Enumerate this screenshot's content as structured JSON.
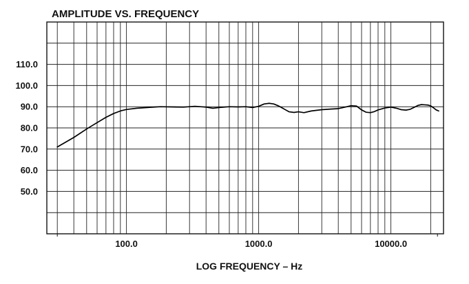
{
  "chart_data": {
    "type": "line",
    "title": "AMPLITUDE VS. FREQUENCY",
    "xlabel": "LOG FREQUENCY – Hz",
    "ylabel": "",
    "xscale": "log",
    "xlim": [
      25,
      25000
    ],
    "ylim": [
      30,
      130
    ],
    "grid": true,
    "x_ticks": [
      {
        "value": 100,
        "label": "100.0"
      },
      {
        "value": 1000,
        "label": "1000.0"
      },
      {
        "value": 10000,
        "label": "10000.0"
      }
    ],
    "y_ticks": [
      {
        "value": 110,
        "label": "110.0"
      },
      {
        "value": 100,
        "label": "100.0"
      },
      {
        "value": 90,
        "label": "90.0"
      },
      {
        "value": 80,
        "label": "80.0"
      },
      {
        "value": 70,
        "label": "70.0"
      },
      {
        "value": 60,
        "label": "60.0"
      },
      {
        "value": 50,
        "label": "50.0"
      }
    ],
    "series": [
      {
        "values": [
          [
            30,
            71
          ],
          [
            40,
            75.5
          ],
          [
            50,
            79.5
          ],
          [
            60,
            82.5
          ],
          [
            70,
            85
          ],
          [
            80,
            86.8
          ],
          [
            90,
            88
          ],
          [
            100,
            88.7
          ],
          [
            120,
            89.3
          ],
          [
            150,
            89.7
          ],
          [
            180,
            90
          ],
          [
            220,
            89.9
          ],
          [
            270,
            89.8
          ],
          [
            330,
            90.2
          ],
          [
            400,
            89.8
          ],
          [
            450,
            89.3
          ],
          [
            500,
            89.6
          ],
          [
            600,
            90
          ],
          [
            700,
            89.9
          ],
          [
            800,
            90
          ],
          [
            900,
            89.6
          ],
          [
            1000,
            90.2
          ],
          [
            1100,
            91.3
          ],
          [
            1200,
            91.6
          ],
          [
            1300,
            91.3
          ],
          [
            1400,
            90.5
          ],
          [
            1500,
            89.5
          ],
          [
            1600,
            88.5
          ],
          [
            1700,
            87.6
          ],
          [
            1850,
            87.3
          ],
          [
            2000,
            87.6
          ],
          [
            2200,
            87.2
          ],
          [
            2500,
            88
          ],
          [
            3000,
            88.6
          ],
          [
            3500,
            88.9
          ],
          [
            4000,
            89.1
          ],
          [
            4500,
            89.8
          ],
          [
            5000,
            90.5
          ],
          [
            5500,
            90.3
          ],
          [
            6000,
            88.5
          ],
          [
            6500,
            87.4
          ],
          [
            7000,
            87.2
          ],
          [
            7500,
            87.7
          ],
          [
            8000,
            88.5
          ],
          [
            9000,
            89.4
          ],
          [
            10000,
            89.8
          ],
          [
            11000,
            89.3
          ],
          [
            12000,
            88.6
          ],
          [
            13000,
            88.4
          ],
          [
            14000,
            88.8
          ],
          [
            15000,
            89.7
          ],
          [
            16000,
            90.6
          ],
          [
            17000,
            91
          ],
          [
            18000,
            90.9
          ],
          [
            19000,
            90.8
          ],
          [
            20000,
            90.4
          ],
          [
            21000,
            89.5
          ],
          [
            22000,
            88.5
          ],
          [
            23000,
            88
          ]
        ]
      }
    ]
  }
}
